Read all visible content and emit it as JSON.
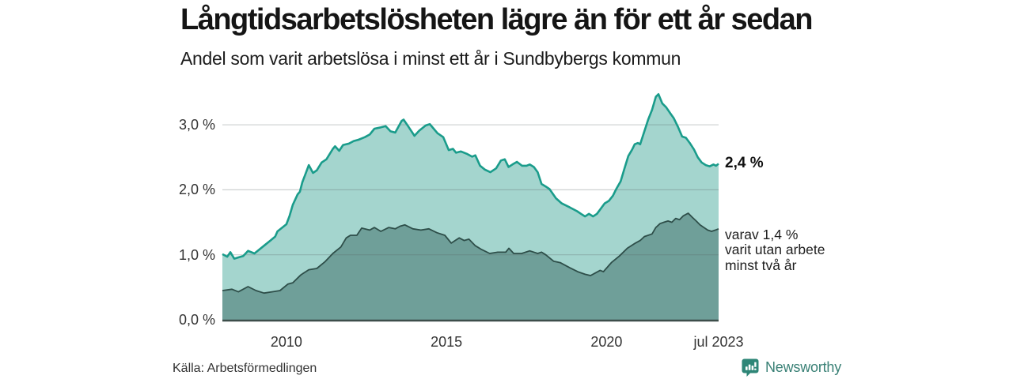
{
  "header": {
    "title": "Långtidsarbetslösheten lägre än för ett år sedan",
    "subtitle": "Andel som varit arbetslösa i minst ett år i Sundbybergs kommun"
  },
  "footer": {
    "source": "Källa: Arbetsförmedlingen",
    "brand": "Newsworthy"
  },
  "colors": {
    "background": "#ffffff",
    "total_line": "#1a9c8b",
    "total_fill": "#a4d5ce",
    "two_year_line": "#2e4e49",
    "two_year_fill": "#6f9f99",
    "gridline": "#cccccc",
    "axis_line": "#3d4e4a",
    "text_dark": "#151515",
    "tick_text": "#333333",
    "brand_teal": "#2e8677"
  },
  "chart_data": {
    "type": "area",
    "title": "Långtidsarbetslösheten lägre än för ett år sedan",
    "subtitle": "Andel som varit arbetslösa i minst ett år i Sundbybergs kommun",
    "grid": true,
    "x_range": [
      2008.0,
      2023.5
    ],
    "ylim": [
      0,
      3.6
    ],
    "y_ticks": [
      {
        "label": "3,0 %",
        "value": 3.0
      },
      {
        "label": "2,0 %",
        "value": 2.0
      },
      {
        "label": "1,0 %",
        "value": 1.0
      },
      {
        "label": "0,0 %",
        "value": 0.0
      }
    ],
    "x_ticks": [
      {
        "label": "2010",
        "year": 2010
      },
      {
        "label": "2015",
        "year": 2015
      },
      {
        "label": "2020",
        "year": 2020
      },
      {
        "label": "jul 2023",
        "year": 2023.5
      }
    ],
    "annotations": {
      "total_end_label": "2,4 %",
      "total_end_value": 2.4,
      "two_year_end_value": 1.4,
      "two_year_lines": [
        "varav 1,4 %",
        "varit utan arbete",
        "minst två år"
      ]
    },
    "series": [
      {
        "id": "unemployed_min_one_year_total",
        "end_label": "2,4 %",
        "points": [
          [
            2008.0,
            1.01
          ],
          [
            2008.15,
            0.97
          ],
          [
            2008.25,
            1.04
          ],
          [
            2008.37,
            0.94
          ],
          [
            2008.5,
            0.96
          ],
          [
            2008.65,
            0.98
          ],
          [
            2008.8,
            1.06
          ],
          [
            2009.0,
            1.02
          ],
          [
            2009.15,
            1.08
          ],
          [
            2009.3,
            1.14
          ],
          [
            2009.5,
            1.22
          ],
          [
            2009.65,
            1.28
          ],
          [
            2009.72,
            1.36
          ],
          [
            2009.85,
            1.41
          ],
          [
            2010.0,
            1.47
          ],
          [
            2010.1,
            1.6
          ],
          [
            2010.2,
            1.77
          ],
          [
            2010.35,
            1.93
          ],
          [
            2010.42,
            1.97
          ],
          [
            2010.5,
            2.12
          ],
          [
            2010.6,
            2.25
          ],
          [
            2010.7,
            2.38
          ],
          [
            2010.83,
            2.26
          ],
          [
            2010.95,
            2.3
          ],
          [
            2011.1,
            2.42
          ],
          [
            2011.25,
            2.47
          ],
          [
            2011.45,
            2.63
          ],
          [
            2011.52,
            2.67
          ],
          [
            2011.65,
            2.6
          ],
          [
            2011.77,
            2.69
          ],
          [
            2011.95,
            2.71
          ],
          [
            2012.1,
            2.75
          ],
          [
            2012.25,
            2.77
          ],
          [
            2012.45,
            2.81
          ],
          [
            2012.6,
            2.85
          ],
          [
            2012.75,
            2.94
          ],
          [
            2012.95,
            2.96
          ],
          [
            2013.1,
            2.98
          ],
          [
            2013.25,
            2.9
          ],
          [
            2013.4,
            2.88
          ],
          [
            2013.6,
            3.06
          ],
          [
            2013.66,
            3.08
          ],
          [
            2013.8,
            2.98
          ],
          [
            2014.0,
            2.83
          ],
          [
            2014.15,
            2.91
          ],
          [
            2014.35,
            2.99
          ],
          [
            2014.48,
            3.01
          ],
          [
            2014.6,
            2.94
          ],
          [
            2014.72,
            2.87
          ],
          [
            2014.9,
            2.81
          ],
          [
            2015.07,
            2.61
          ],
          [
            2015.2,
            2.63
          ],
          [
            2015.3,
            2.57
          ],
          [
            2015.45,
            2.59
          ],
          [
            2015.65,
            2.55
          ],
          [
            2015.8,
            2.51
          ],
          [
            2015.9,
            2.53
          ],
          [
            2016.05,
            2.37
          ],
          [
            2016.2,
            2.31
          ],
          [
            2016.37,
            2.27
          ],
          [
            2016.55,
            2.33
          ],
          [
            2016.7,
            2.45
          ],
          [
            2016.82,
            2.47
          ],
          [
            2016.94,
            2.35
          ],
          [
            2017.06,
            2.39
          ],
          [
            2017.2,
            2.43
          ],
          [
            2017.36,
            2.37
          ],
          [
            2017.5,
            2.37
          ],
          [
            2017.6,
            2.39
          ],
          [
            2017.73,
            2.35
          ],
          [
            2017.85,
            2.27
          ],
          [
            2017.97,
            2.09
          ],
          [
            2018.1,
            2.05
          ],
          [
            2018.22,
            2.01
          ],
          [
            2018.42,
            1.87
          ],
          [
            2018.6,
            1.79
          ],
          [
            2018.85,
            1.73
          ],
          [
            2019.08,
            1.67
          ],
          [
            2019.2,
            1.63
          ],
          [
            2019.33,
            1.59
          ],
          [
            2019.45,
            1.63
          ],
          [
            2019.58,
            1.59
          ],
          [
            2019.7,
            1.63
          ],
          [
            2019.94,
            1.79
          ],
          [
            2020.07,
            1.83
          ],
          [
            2020.2,
            1.91
          ],
          [
            2020.3,
            2.01
          ],
          [
            2020.44,
            2.13
          ],
          [
            2020.56,
            2.33
          ],
          [
            2020.68,
            2.52
          ],
          [
            2020.8,
            2.62
          ],
          [
            2020.88,
            2.7
          ],
          [
            2020.98,
            2.72
          ],
          [
            2021.05,
            2.7
          ],
          [
            2021.18,
            2.9
          ],
          [
            2021.3,
            3.08
          ],
          [
            2021.42,
            3.23
          ],
          [
            2021.54,
            3.43
          ],
          [
            2021.62,
            3.47
          ],
          [
            2021.74,
            3.33
          ],
          [
            2021.86,
            3.27
          ],
          [
            2022.0,
            3.17
          ],
          [
            2022.1,
            3.1
          ],
          [
            2022.23,
            2.97
          ],
          [
            2022.36,
            2.82
          ],
          [
            2022.48,
            2.8
          ],
          [
            2022.6,
            2.72
          ],
          [
            2022.73,
            2.62
          ],
          [
            2022.85,
            2.5
          ],
          [
            2022.97,
            2.42
          ],
          [
            2023.1,
            2.38
          ],
          [
            2023.22,
            2.36
          ],
          [
            2023.34,
            2.39
          ],
          [
            2023.42,
            2.37
          ],
          [
            2023.5,
            2.4
          ]
        ]
      },
      {
        "id": "unemployed_min_two_years",
        "end_label": "varav 1,4 % varit utan arbete minst två år",
        "points": [
          [
            2008.0,
            0.45
          ],
          [
            2008.3,
            0.47
          ],
          [
            2008.5,
            0.43
          ],
          [
            2008.8,
            0.51
          ],
          [
            2009.05,
            0.45
          ],
          [
            2009.3,
            0.41
          ],
          [
            2009.55,
            0.43
          ],
          [
            2009.8,
            0.45
          ],
          [
            2010.05,
            0.55
          ],
          [
            2010.2,
            0.57
          ],
          [
            2010.45,
            0.69
          ],
          [
            2010.7,
            0.77
          ],
          [
            2010.95,
            0.79
          ],
          [
            2011.2,
            0.89
          ],
          [
            2011.45,
            1.02
          ],
          [
            2011.7,
            1.12
          ],
          [
            2011.87,
            1.26
          ],
          [
            2012.0,
            1.3
          ],
          [
            2012.2,
            1.3
          ],
          [
            2012.35,
            1.41
          ],
          [
            2012.6,
            1.38
          ],
          [
            2012.75,
            1.42
          ],
          [
            2012.95,
            1.36
          ],
          [
            2013.2,
            1.42
          ],
          [
            2013.4,
            1.4
          ],
          [
            2013.55,
            1.44
          ],
          [
            2013.7,
            1.46
          ],
          [
            2013.95,
            1.4
          ],
          [
            2014.2,
            1.38
          ],
          [
            2014.45,
            1.4
          ],
          [
            2014.7,
            1.34
          ],
          [
            2014.95,
            1.3
          ],
          [
            2015.15,
            1.18
          ],
          [
            2015.4,
            1.26
          ],
          [
            2015.55,
            1.22
          ],
          [
            2015.7,
            1.24
          ],
          [
            2015.9,
            1.14
          ],
          [
            2016.1,
            1.08
          ],
          [
            2016.35,
            1.02
          ],
          [
            2016.6,
            1.04
          ],
          [
            2016.85,
            1.04
          ],
          [
            2016.95,
            1.1
          ],
          [
            2017.1,
            1.02
          ],
          [
            2017.35,
            1.02
          ],
          [
            2017.6,
            1.06
          ],
          [
            2017.85,
            1.02
          ],
          [
            2017.97,
            1.04
          ],
          [
            2018.1,
            1.0
          ],
          [
            2018.35,
            0.9
          ],
          [
            2018.55,
            0.88
          ],
          [
            2018.85,
            0.8
          ],
          [
            2019.1,
            0.74
          ],
          [
            2019.33,
            0.7
          ],
          [
            2019.5,
            0.68
          ],
          [
            2019.65,
            0.72
          ],
          [
            2019.8,
            0.76
          ],
          [
            2019.9,
            0.74
          ],
          [
            2020.15,
            0.88
          ],
          [
            2020.4,
            0.98
          ],
          [
            2020.65,
            1.1
          ],
          [
            2020.9,
            1.18
          ],
          [
            2021.05,
            1.22
          ],
          [
            2021.18,
            1.28
          ],
          [
            2021.42,
            1.32
          ],
          [
            2021.54,
            1.42
          ],
          [
            2021.67,
            1.48
          ],
          [
            2021.79,
            1.5
          ],
          [
            2021.92,
            1.52
          ],
          [
            2022.04,
            1.5
          ],
          [
            2022.16,
            1.56
          ],
          [
            2022.28,
            1.54
          ],
          [
            2022.4,
            1.6
          ],
          [
            2022.55,
            1.64
          ],
          [
            2022.67,
            1.58
          ],
          [
            2022.8,
            1.52
          ],
          [
            2022.92,
            1.46
          ],
          [
            2023.04,
            1.42
          ],
          [
            2023.16,
            1.38
          ],
          [
            2023.28,
            1.36
          ],
          [
            2023.4,
            1.38
          ],
          [
            2023.5,
            1.4
          ]
        ]
      }
    ]
  }
}
